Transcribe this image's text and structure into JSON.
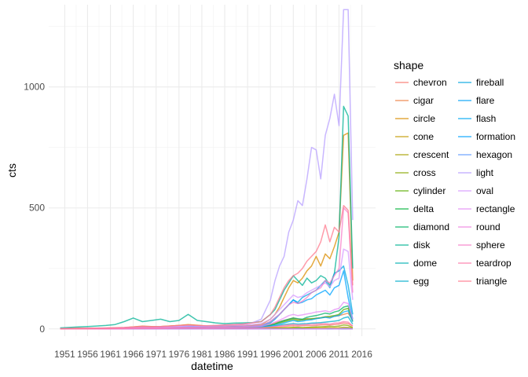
{
  "chart_data": {
    "type": "line",
    "xlabel": "datetime",
    "ylabel": "cts",
    "legend_title": "shape",
    "legend_position": "right",
    "grid": true,
    "xlim": [
      1947.5,
      2019
    ],
    "ylim": [
      -30,
      1340
    ],
    "x_ticks": [
      1951,
      1956,
      1961,
      1966,
      1971,
      1976,
      1981,
      1986,
      1991,
      1996,
      2001,
      2006,
      2011,
      2016
    ],
    "y_ticks": [
      0,
      500,
      1000
    ],
    "x": [
      1950,
      1952,
      1954,
      1956,
      1958,
      1960,
      1962,
      1964,
      1966,
      1968,
      1970,
      1972,
      1974,
      1976,
      1978,
      1980,
      1982,
      1984,
      1986,
      1988,
      1990,
      1992,
      1994,
      1996,
      1997,
      1998,
      1999,
      2000,
      2001,
      2002,
      2003,
      2004,
      2005,
      2006,
      2007,
      2008,
      2009,
      2010,
      2011,
      2012,
      2013,
      2014
    ],
    "series": [
      {
        "name": "chevron",
        "color": "#F8766D",
        "values": [
          0,
          0,
          0,
          0,
          1,
          1,
          1,
          1,
          2,
          3,
          2,
          2,
          3,
          3,
          3,
          2,
          2,
          2,
          2,
          3,
          3,
          2,
          3,
          6,
          7,
          8,
          10,
          12,
          13,
          12,
          13,
          14,
          13,
          14,
          16,
          17,
          16,
          18,
          20,
          24,
          22,
          12
        ]
      },
      {
        "name": "cigar",
        "color": "#EE8043",
        "values": [
          1,
          2,
          3,
          2,
          3,
          3,
          4,
          5,
          8,
          12,
          10,
          10,
          12,
          14,
          16,
          14,
          12,
          10,
          10,
          11,
          10,
          8,
          10,
          20,
          25,
          30,
          35,
          40,
          45,
          40,
          38,
          42,
          40,
          44,
          46,
          50,
          48,
          52,
          55,
          60,
          65,
          35
        ]
      },
      {
        "name": "circle",
        "color": "#DB8E00",
        "values": [
          1,
          2,
          2,
          2,
          3,
          3,
          4,
          5,
          8,
          10,
          9,
          10,
          12,
          14,
          18,
          15,
          12,
          12,
          14,
          13,
          14,
          15,
          18,
          40,
          60,
          90,
          130,
          170,
          200,
          190,
          210,
          240,
          260,
          300,
          260,
          310,
          290,
          340,
          400,
          800,
          810,
          200
        ]
      },
      {
        "name": "cone",
        "color": "#C49A00",
        "values": [
          0,
          0,
          0,
          0,
          0,
          0,
          0,
          0,
          0,
          1,
          1,
          1,
          1,
          1,
          1,
          1,
          1,
          1,
          1,
          1,
          1,
          1,
          1,
          2,
          3,
          3,
          3,
          4,
          5,
          4,
          5,
          5,
          4,
          5,
          4,
          5,
          5,
          4,
          5,
          7,
          6,
          3
        ]
      },
      {
        "name": "crescent",
        "color": "#AAA200",
        "values": [
          0,
          0,
          0,
          0,
          0,
          0,
          0,
          0,
          0,
          0,
          0,
          0,
          0,
          0,
          0,
          0,
          0,
          0,
          0,
          0,
          0,
          0,
          0,
          0,
          0,
          0,
          0,
          0,
          0,
          0,
          0,
          0,
          0,
          0,
          0,
          0,
          0,
          0,
          0,
          1,
          1,
          0
        ]
      },
      {
        "name": "cross",
        "color": "#8AA900",
        "values": [
          0,
          0,
          0,
          0,
          0,
          0,
          0,
          0,
          0,
          0,
          0,
          0,
          0,
          1,
          1,
          0,
          0,
          0,
          0,
          0,
          1,
          1,
          1,
          2,
          3,
          3,
          4,
          5,
          6,
          6,
          5,
          6,
          7,
          8,
          9,
          10,
          11,
          10,
          12,
          16,
          14,
          6
        ]
      },
      {
        "name": "cylinder",
        "color": "#5BAE00",
        "values": [
          0,
          0,
          1,
          1,
          1,
          2,
          2,
          2,
          3,
          4,
          4,
          4,
          5,
          5,
          6,
          6,
          5,
          5,
          5,
          6,
          7,
          8,
          10,
          15,
          20,
          25,
          30,
          35,
          40,
          35,
          38,
          40,
          42,
          44,
          46,
          50,
          52,
          55,
          60,
          80,
          85,
          30
        ]
      },
      {
        "name": "delta",
        "color": "#00B13A",
        "values": [
          0,
          0,
          0,
          0,
          0,
          0,
          0,
          0,
          0,
          0,
          0,
          0,
          0,
          0,
          0,
          0,
          0,
          0,
          0,
          0,
          0,
          0,
          0,
          0,
          0,
          0,
          0,
          0,
          0,
          1,
          0,
          0,
          0,
          0,
          0,
          0,
          0,
          0,
          0,
          1,
          1,
          0
        ]
      },
      {
        "name": "diamond",
        "color": "#00B166",
        "values": [
          0,
          0,
          1,
          1,
          1,
          2,
          2,
          3,
          4,
          5,
          4,
          4,
          5,
          6,
          6,
          6,
          5,
          5,
          5,
          6,
          7,
          8,
          10,
          15,
          20,
          28,
          35,
          40,
          45,
          42,
          40,
          48,
          52,
          55,
          60,
          65,
          62,
          70,
          75,
          90,
          95,
          40
        ]
      },
      {
        "name": "disk",
        "color": "#00B294",
        "values": [
          4,
          6,
          8,
          10,
          12,
          14,
          18,
          30,
          45,
          30,
          35,
          40,
          30,
          35,
          60,
          35,
          30,
          25,
          22,
          24,
          25,
          26,
          30,
          60,
          80,
          120,
          160,
          190,
          220,
          200,
          180,
          210,
          190,
          200,
          220,
          210,
          180,
          230,
          380,
          920,
          880,
          250
        ]
      },
      {
        "name": "dome",
        "color": "#00B0B3",
        "values": [
          0,
          0,
          0,
          0,
          0,
          0,
          0,
          0,
          0,
          0,
          0,
          0,
          0,
          0,
          0,
          0,
          0,
          0,
          0,
          0,
          0,
          0,
          0,
          0,
          0,
          0,
          0,
          0,
          0,
          0,
          0,
          0,
          0,
          0,
          0,
          0,
          1,
          0,
          0,
          1,
          0,
          0
        ]
      },
      {
        "name": "egg",
        "color": "#00ADCC",
        "values": [
          0,
          0,
          1,
          1,
          1,
          1,
          2,
          2,
          3,
          4,
          4,
          4,
          5,
          5,
          6,
          5,
          5,
          5,
          5,
          5,
          6,
          6,
          7,
          10,
          12,
          15,
          18,
          20,
          22,
          20,
          21,
          22,
          24,
          25,
          26,
          28,
          30,
          32,
          35,
          45,
          50,
          20
        ]
      },
      {
        "name": "fireball",
        "color": "#00A7E1",
        "values": [
          0,
          0,
          1,
          1,
          1,
          2,
          2,
          3,
          4,
          5,
          5,
          5,
          6,
          6,
          8,
          8,
          7,
          7,
          8,
          9,
          10,
          10,
          12,
          25,
          40,
          60,
          80,
          100,
          120,
          110,
          130,
          140,
          150,
          160,
          180,
          200,
          170,
          230,
          240,
          260,
          180,
          60
        ]
      },
      {
        "name": "flare",
        "color": "#00A0F5",
        "values": [
          0,
          0,
          0,
          0,
          0,
          0,
          0,
          0,
          0,
          0,
          0,
          0,
          0,
          0,
          0,
          0,
          0,
          0,
          0,
          0,
          0,
          0,
          0,
          0,
          0,
          0,
          0,
          0,
          0,
          0,
          0,
          0,
          0,
          0,
          0,
          0,
          0,
          0,
          0,
          1,
          1,
          0
        ]
      },
      {
        "name": "flash",
        "color": "#00A9F4",
        "values": [
          0,
          0,
          0,
          1,
          1,
          1,
          1,
          2,
          2,
          3,
          3,
          3,
          4,
          4,
          5,
          5,
          4,
          4,
          4,
          5,
          6,
          7,
          8,
          12,
          15,
          20,
          25,
          30,
          35,
          30,
          32,
          36,
          38,
          42,
          45,
          48,
          45,
          52,
          55,
          70,
          75,
          30
        ]
      },
      {
        "name": "formation",
        "color": "#00A3FF",
        "values": [
          0,
          1,
          1,
          1,
          2,
          2,
          2,
          3,
          4,
          5,
          5,
          5,
          6,
          7,
          8,
          8,
          7,
          7,
          8,
          9,
          10,
          12,
          14,
          30,
          45,
          60,
          80,
          100,
          120,
          105,
          110,
          120,
          125,
          140,
          150,
          160,
          140,
          170,
          180,
          240,
          130,
          40
        ]
      },
      {
        "name": "hexagon",
        "color": "#619CFF",
        "values": [
          0,
          0,
          0,
          0,
          0,
          0,
          0,
          0,
          0,
          0,
          0,
          0,
          0,
          0,
          0,
          0,
          0,
          0,
          0,
          0,
          0,
          0,
          0,
          0,
          0,
          0,
          0,
          0,
          0,
          1,
          0,
          0,
          0,
          0,
          0,
          0,
          0,
          0,
          0,
          1,
          1,
          0
        ]
      },
      {
        "name": "light",
        "color": "#B79FFF",
        "values": [
          0,
          1,
          1,
          2,
          2,
          3,
          3,
          4,
          5,
          6,
          6,
          7,
          8,
          10,
          12,
          12,
          12,
          14,
          16,
          18,
          20,
          25,
          40,
          120,
          200,
          260,
          300,
          400,
          450,
          530,
          510,
          620,
          750,
          740,
          620,
          800,
          870,
          970,
          840,
          1320,
          1320,
          450
        ]
      },
      {
        "name": "oval",
        "color": "#D699FF",
        "values": [
          1,
          1,
          2,
          2,
          3,
          3,
          4,
          5,
          7,
          9,
          8,
          9,
          10,
          12,
          14,
          12,
          11,
          12,
          13,
          14,
          15,
          18,
          22,
          40,
          60,
          80,
          100,
          120,
          140,
          130,
          135,
          150,
          160,
          170,
          180,
          190,
          175,
          200,
          210,
          330,
          320,
          120
        ]
      },
      {
        "name": "rectangle",
        "color": "#E48DF7",
        "values": [
          0,
          0,
          1,
          1,
          1,
          1,
          2,
          2,
          3,
          4,
          4,
          4,
          5,
          5,
          6,
          6,
          5,
          6,
          6,
          7,
          8,
          9,
          11,
          20,
          28,
          36,
          45,
          55,
          60,
          55,
          58,
          62,
          65,
          70,
          72,
          75,
          70,
          80,
          85,
          110,
          105,
          40
        ]
      },
      {
        "name": "round",
        "color": "#EF86E1",
        "values": [
          0,
          0,
          0,
          0,
          0,
          0,
          0,
          0,
          0,
          0,
          0,
          0,
          0,
          0,
          0,
          0,
          0,
          0,
          0,
          0,
          0,
          0,
          0,
          0,
          0,
          0,
          0,
          0,
          0,
          0,
          0,
          0,
          0,
          0,
          0,
          0,
          1,
          0,
          0,
          1,
          0,
          0
        ]
      },
      {
        "name": "sphere",
        "color": "#F77FC8",
        "values": [
          0,
          0,
          1,
          1,
          1,
          1,
          2,
          2,
          3,
          4,
          4,
          4,
          5,
          6,
          7,
          6,
          6,
          7,
          8,
          9,
          10,
          12,
          15,
          30,
          45,
          60,
          80,
          100,
          110,
          105,
          115,
          130,
          150,
          160,
          170,
          200,
          190,
          220,
          250,
          500,
          480,
          150
        ]
      },
      {
        "name": "teardrop",
        "color": "#FD79AA",
        "values": [
          0,
          0,
          0,
          0,
          1,
          1,
          1,
          1,
          2,
          2,
          2,
          2,
          3,
          3,
          3,
          3,
          3,
          3,
          3,
          3,
          4,
          4,
          5,
          8,
          10,
          12,
          14,
          16,
          18,
          16,
          17,
          18,
          19,
          20,
          21,
          22,
          20,
          24,
          25,
          30,
          28,
          12
        ]
      },
      {
        "name": "triangle",
        "color": "#FF7A8E",
        "values": [
          1,
          2,
          2,
          3,
          3,
          4,
          5,
          6,
          8,
          10,
          9,
          10,
          12,
          14,
          16,
          14,
          13,
          14,
          16,
          18,
          20,
          25,
          30,
          60,
          90,
          130,
          170,
          200,
          220,
          230,
          250,
          280,
          300,
          320,
          360,
          430,
          360,
          420,
          400,
          510,
          490,
          180
        ]
      }
    ]
  }
}
